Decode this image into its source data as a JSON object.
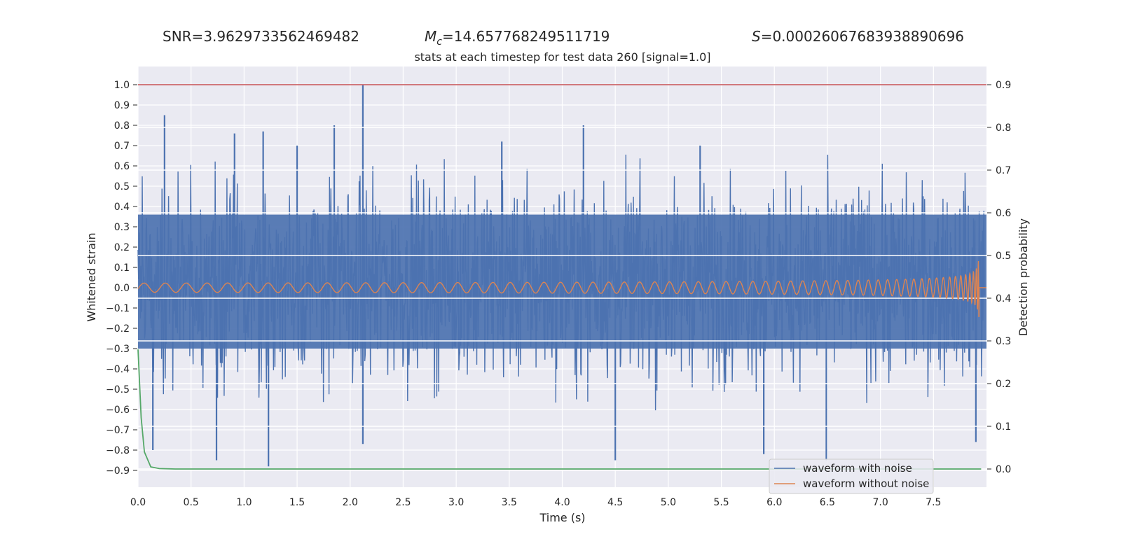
{
  "header": {
    "snr_label": "SNR=",
    "snr_value": "3.9629733562469482",
    "mc_symbol": "M",
    "mc_sub": "c",
    "mc_value": "=14.657768249511719",
    "s_symbol": "S",
    "s_value": "=0.00026067683938890696"
  },
  "chart_data": {
    "type": "line",
    "title": "stats at each timestep for test data 260 [signal=1.0]",
    "xlabel": "Time (s)",
    "ylabel": "Whitened strain",
    "y2label": "Detection probability",
    "xlim": [
      0.0,
      8.0
    ],
    "ylim": [
      -1.0,
      1.1
    ],
    "y2lim": [
      -0.04,
      0.94
    ],
    "x_ticks": [
      "0.0",
      "0.5",
      "1.0",
      "1.5",
      "2.0",
      "2.5",
      "3.0",
      "3.5",
      "4.0",
      "4.5",
      "5.0",
      "5.5",
      "6.0",
      "6.5",
      "7.0",
      "7.5"
    ],
    "y_ticks": [
      "1.0",
      "0.9",
      "0.8",
      "0.7",
      "0.6",
      "0.5",
      "0.4",
      "0.3",
      "0.2",
      "0.1",
      "0.0",
      "−0.1",
      "−0.2",
      "−0.3",
      "−0.4",
      "−0.5",
      "−0.6",
      "−0.7",
      "−0.8",
      "−0.9"
    ],
    "y2_ticks": [
      "0.9",
      "0.8",
      "0.7",
      "0.6",
      "0.5",
      "0.4",
      "0.3",
      "0.2",
      "0.1",
      "0.0"
    ],
    "threshold_line": {
      "axis": "y",
      "value": 1.0,
      "color": "#c44e52"
    },
    "series": [
      {
        "name": "waveform with noise",
        "color": "#4c72b0",
        "axis": "left",
        "description": "dense noise band spanning about -0.9 to 1.0",
        "peaks_up": [
          [
            0.25,
            0.85
          ],
          [
            0.91,
            0.76
          ],
          [
            1.18,
            0.77
          ],
          [
            1.85,
            0.8
          ],
          [
            2.12,
            1.0
          ],
          [
            4.2,
            0.8
          ],
          [
            1.5,
            0.7
          ],
          [
            3.43,
            0.72
          ],
          [
            5.3,
            0.7
          ]
        ],
        "peaks_down": [
          [
            1.23,
            -0.88
          ],
          [
            0.74,
            -0.85
          ],
          [
            6.49,
            -0.85
          ],
          [
            4.5,
            -0.85
          ],
          [
            5.9,
            -0.82
          ],
          [
            2.12,
            -0.77
          ],
          [
            7.9,
            -0.76
          ],
          [
            0.14,
            -0.8
          ]
        ]
      },
      {
        "name": "waveform without noise",
        "color": "#dd8452",
        "axis": "left",
        "description": "inspiral chirp with growing amplitude, merger near 7.93 s",
        "merger_time": 7.93,
        "peak_amplitude": 0.2
      },
      {
        "name": "detection probability",
        "color": "#55a868",
        "axis": "right",
        "x": [
          0.0,
          0.03,
          0.06,
          0.12,
          0.2,
          0.35,
          0.6,
          1.0,
          7.95
        ],
        "values": [
          0.28,
          0.12,
          0.04,
          0.005,
          0.001,
          0.0,
          0.0,
          0.0,
          0.0
        ]
      }
    ],
    "legend": {
      "position": "lower-right",
      "entries": [
        "waveform with noise",
        "waveform without noise"
      ]
    }
  }
}
